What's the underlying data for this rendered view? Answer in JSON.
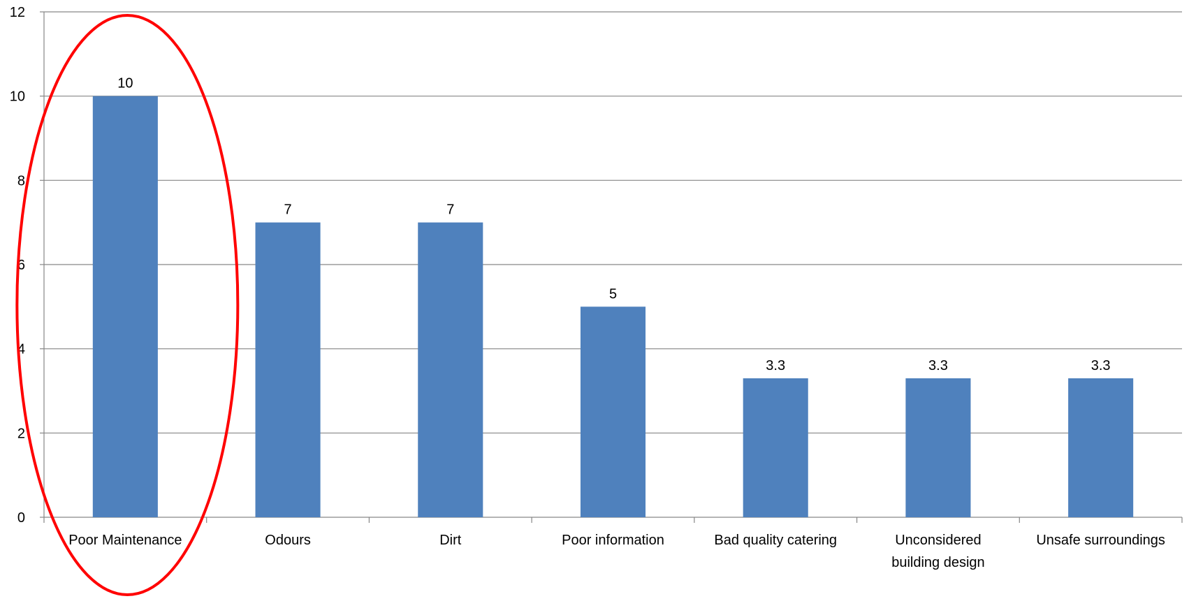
{
  "chart_data": {
    "type": "bar",
    "categories": [
      [
        "Poor Maintenance"
      ],
      [
        "Odours"
      ],
      [
        "Dirt"
      ],
      [
        "Poor information"
      ],
      [
        "Bad quality catering"
      ],
      [
        "Unconsidered",
        "building design"
      ],
      [
        "Unsafe surroundings"
      ]
    ],
    "values": [
      10,
      7,
      7,
      5,
      3.3,
      3.3,
      3.3
    ],
    "data_labels": [
      "10",
      "7",
      "7",
      "5",
      "3.3",
      "3.3",
      "3.3"
    ],
    "yticks": [
      "0",
      "2",
      "4",
      "6",
      "8",
      "10",
      "12"
    ],
    "ylim": [
      0,
      12
    ],
    "grid": true,
    "title": "",
    "xlabel": "",
    "ylabel": "",
    "highlight": {
      "category_index": 0,
      "shape": "ellipse"
    },
    "colors": {
      "bar": "#4f81bd",
      "highlight": "#ff0000",
      "gridline": "#868686"
    }
  }
}
